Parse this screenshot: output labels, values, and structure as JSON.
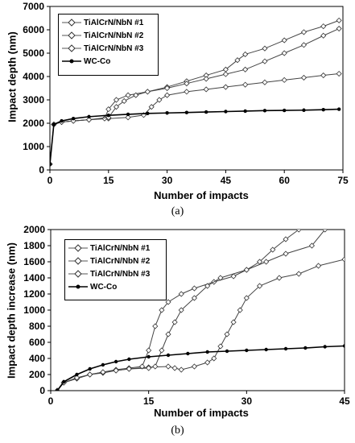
{
  "chart_data": [
    {
      "type": "line",
      "xlabel": "Number of impacts",
      "ylabel": "Impact depth (nm)",
      "xlim": [
        0,
        75
      ],
      "ylim": [
        0,
        7000
      ],
      "xticks": [
        0,
        15,
        30,
        45,
        60,
        75
      ],
      "yticks": [
        0,
        1000,
        2000,
        3000,
        4000,
        5000,
        6000,
        7000
      ],
      "caption": "(a)",
      "legend_position": "top-left",
      "grid": false,
      "series": [
        {
          "name": "TiAlCrN/NbN #1",
          "marker": "open-diamond",
          "points": [
            [
              0,
              250
            ],
            [
              1,
              1950
            ],
            [
              3,
              2050
            ],
            [
              6,
              2100
            ],
            [
              10,
              2150
            ],
            [
              15,
              2200
            ],
            [
              20,
              2250
            ],
            [
              24,
              2350
            ],
            [
              26,
              2700
            ],
            [
              28,
              3000
            ],
            [
              30,
              3200
            ],
            [
              35,
              3350
            ],
            [
              40,
              3450
            ],
            [
              45,
              3550
            ],
            [
              50,
              3650
            ],
            [
              55,
              3750
            ],
            [
              60,
              3850
            ],
            [
              65,
              3950
            ],
            [
              70,
              4050
            ],
            [
              74,
              4120
            ]
          ]
        },
        {
          "name": "TiAlCrN/NbN #2",
          "marker": "open-diamond",
          "points": [
            [
              0,
              250
            ],
            [
              1,
              1950
            ],
            [
              3,
              2050
            ],
            [
              6,
              2100
            ],
            [
              10,
              2150
            ],
            [
              14,
              2200
            ],
            [
              15,
              2600
            ],
            [
              17,
              3000
            ],
            [
              20,
              3200
            ],
            [
              25,
              3350
            ],
            [
              30,
              3550
            ],
            [
              35,
              3800
            ],
            [
              40,
              4050
            ],
            [
              45,
              4300
            ],
            [
              48,
              4700
            ],
            [
              50,
              4950
            ],
            [
              55,
              5200
            ],
            [
              60,
              5550
            ],
            [
              65,
              5900
            ],
            [
              70,
              6150
            ],
            [
              74,
              6400
            ]
          ]
        },
        {
          "name": "TiAlCrN/NbN #3",
          "marker": "open-diamond",
          "points": [
            [
              0,
              250
            ],
            [
              1,
              1950
            ],
            [
              3,
              2050
            ],
            [
              6,
              2100
            ],
            [
              10,
              2150
            ],
            [
              15,
              2250
            ],
            [
              17,
              2700
            ],
            [
              19,
              2950
            ],
            [
              22,
              3200
            ],
            [
              25,
              3350
            ],
            [
              30,
              3500
            ],
            [
              35,
              3700
            ],
            [
              40,
              3900
            ],
            [
              45,
              4100
            ],
            [
              50,
              4300
            ],
            [
              55,
              4650
            ],
            [
              60,
              5000
            ],
            [
              65,
              5350
            ],
            [
              70,
              5750
            ],
            [
              74,
              6050
            ]
          ]
        },
        {
          "name": "WC-Co",
          "marker": "filled-circle",
          "points": [
            [
              0,
              250
            ],
            [
              1,
              1950
            ],
            [
              3,
              2100
            ],
            [
              6,
              2200
            ],
            [
              10,
              2280
            ],
            [
              15,
              2340
            ],
            [
              20,
              2380
            ],
            [
              25,
              2420
            ],
            [
              30,
              2440
            ],
            [
              35,
              2460
            ],
            [
              40,
              2480
            ],
            [
              45,
              2500
            ],
            [
              50,
              2520
            ],
            [
              55,
              2540
            ],
            [
              60,
              2550
            ],
            [
              65,
              2560
            ],
            [
              70,
              2580
            ],
            [
              74,
              2600
            ]
          ]
        }
      ]
    },
    {
      "type": "line",
      "xlabel": "Number of impacts",
      "ylabel": "Impact depth increase (nm)",
      "xlim": [
        0,
        45
      ],
      "ylim": [
        0,
        2000
      ],
      "xticks": [
        0,
        15,
        30,
        45
      ],
      "yticks": [
        0,
        200,
        400,
        600,
        800,
        1000,
        1200,
        1400,
        1600,
        1800,
        2000
      ],
      "caption": "(b)",
      "legend_position": "top-left",
      "grid": false,
      "series": [
        {
          "name": "TiAlCrN/NbN #1",
          "marker": "open-diamond",
          "points": [
            [
              1,
              0
            ],
            [
              2,
              100
            ],
            [
              4,
              150
            ],
            [
              6,
              200
            ],
            [
              8,
              220
            ],
            [
              10,
              250
            ],
            [
              12,
              270
            ],
            [
              15,
              290
            ],
            [
              18,
              300
            ],
            [
              19,
              280
            ],
            [
              20,
              260
            ],
            [
              22,
              300
            ],
            [
              24,
              350
            ],
            [
              25,
              400
            ],
            [
              26,
              550
            ],
            [
              27,
              700
            ],
            [
              28,
              850
            ],
            [
              29,
              1000
            ],
            [
              30,
              1150
            ],
            [
              32,
              1300
            ],
            [
              35,
              1400
            ],
            [
              38,
              1450
            ],
            [
              41,
              1550
            ],
            [
              45,
              1630
            ]
          ]
        },
        {
          "name": "TiAlCrN/NbN #2",
          "marker": "open-diamond",
          "points": [
            [
              1,
              0
            ],
            [
              2,
              100
            ],
            [
              4,
              150
            ],
            [
              6,
              200
            ],
            [
              8,
              230
            ],
            [
              10,
              260
            ],
            [
              12,
              280
            ],
            [
              14,
              300
            ],
            [
              15,
              500
            ],
            [
              16,
              800
            ],
            [
              17,
              1000
            ],
            [
              18,
              1100
            ],
            [
              20,
              1200
            ],
            [
              22,
              1270
            ],
            [
              25,
              1350
            ],
            [
              28,
              1420
            ],
            [
              30,
              1500
            ],
            [
              32,
              1600
            ],
            [
              34,
              1750
            ],
            [
              36,
              1880
            ],
            [
              38,
              2000
            ]
          ]
        },
        {
          "name": "TiAlCrN/NbN #3",
          "marker": "open-diamond",
          "points": [
            [
              1,
              0
            ],
            [
              2,
              100
            ],
            [
              4,
              160
            ],
            [
              6,
              200
            ],
            [
              8,
              230
            ],
            [
              10,
              250
            ],
            [
              12,
              270
            ],
            [
              15,
              280
            ],
            [
              16,
              300
            ],
            [
              17,
              500
            ],
            [
              18,
              700
            ],
            [
              19,
              850
            ],
            [
              20,
              1000
            ],
            [
              22,
              1150
            ],
            [
              24,
              1300
            ],
            [
              26,
              1400
            ],
            [
              30,
              1500
            ],
            [
              33,
              1600
            ],
            [
              36,
              1700
            ],
            [
              40,
              1800
            ],
            [
              42,
              2000
            ]
          ]
        },
        {
          "name": "WC-Co",
          "marker": "filled-circle",
          "points": [
            [
              1,
              0
            ],
            [
              2,
              110
            ],
            [
              4,
              200
            ],
            [
              6,
              270
            ],
            [
              8,
              320
            ],
            [
              10,
              360
            ],
            [
              12,
              390
            ],
            [
              15,
              420
            ],
            [
              18,
              440
            ],
            [
              21,
              460
            ],
            [
              24,
              480
            ],
            [
              27,
              490
            ],
            [
              30,
              500
            ],
            [
              33,
              510
            ],
            [
              36,
              520
            ],
            [
              39,
              530
            ],
            [
              42,
              545
            ],
            [
              45,
              555
            ]
          ]
        }
      ]
    }
  ]
}
